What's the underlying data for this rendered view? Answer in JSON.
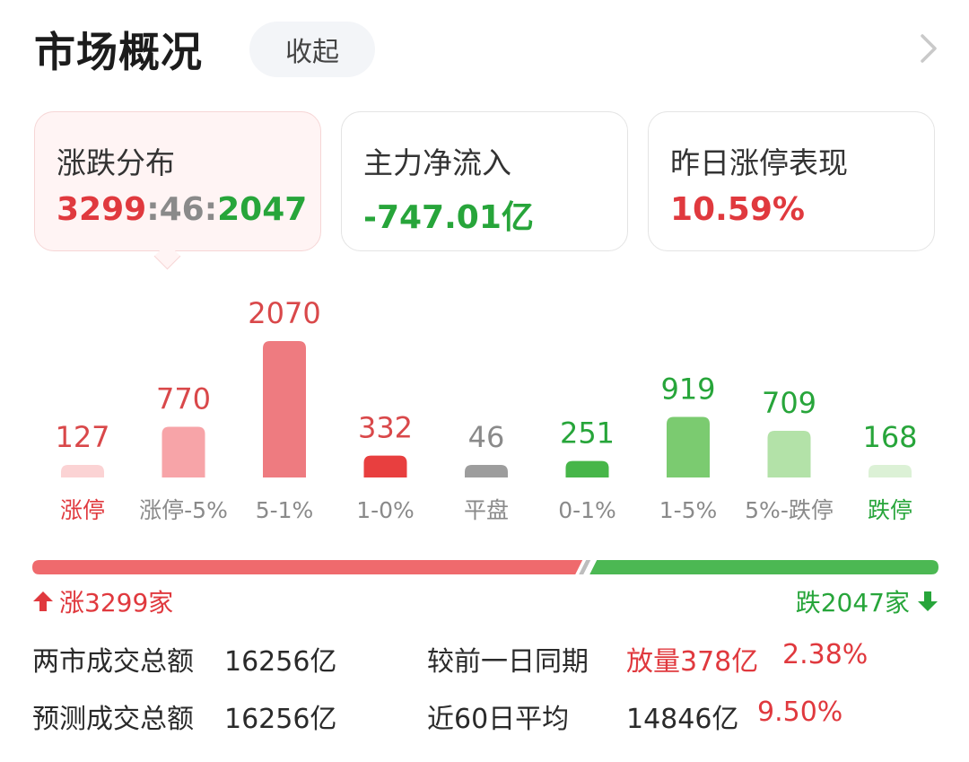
{
  "header": {
    "title": "市场概况",
    "collapse_label": "收起"
  },
  "cards": [
    {
      "label": "涨跌分布",
      "up": "3299",
      "sep1": ":",
      "flat": "46",
      "sep2": ":",
      "down": "2047"
    },
    {
      "label": "主力净流入",
      "value": "-747.01亿"
    },
    {
      "label": "昨日涨停表现",
      "value": "10.59%"
    }
  ],
  "chart_data": {
    "type": "bar",
    "categories": [
      "涨停",
      "涨停-5%",
      "5-1%",
      "1-0%",
      "平盘",
      "0-1%",
      "1-5%",
      "5%-跌停",
      "跌停"
    ],
    "values": [
      127,
      770,
      2070,
      332,
      46,
      251,
      919,
      709,
      168
    ],
    "colors": [
      "#fbd3d4",
      "#f7a4a8",
      "#ee7b80",
      "#e83f3f",
      "#9d9d9d",
      "#47b649",
      "#7bcb70",
      "#b3e2a8",
      "#dcf1d6"
    ],
    "value_colors": [
      "#d9484a",
      "#d9484a",
      "#d9484a",
      "#d9484a",
      "#8a8a8a",
      "#27a53a",
      "#27a53a",
      "#27a53a",
      "#27a53a"
    ],
    "label_colors": [
      "#e0393e",
      "#8a8a8a",
      "#8a8a8a",
      "#8a8a8a",
      "#8a8a8a",
      "#8a8a8a",
      "#8a8a8a",
      "#8a8a8a",
      "#27a53a"
    ],
    "ylim": [
      0,
      2070
    ]
  },
  "ratio": {
    "up_label": "涨3299家",
    "down_label": "跌2047家",
    "up_count": 3299,
    "down_count": 2047,
    "up_color": "#ef6a6d",
    "down_color": "#4cb853"
  },
  "stats": {
    "row1": {
      "label": "两市成交总额",
      "value": "16256亿",
      "compare_label": "较前一日同期",
      "change_text": "放量378亿",
      "change_pct": "2.38%"
    },
    "row2": {
      "label": "预测成交总额",
      "value": "16256亿",
      "avg_label": "近60日平均",
      "avg_value": "14846亿",
      "avg_pct": "9.50%"
    }
  }
}
